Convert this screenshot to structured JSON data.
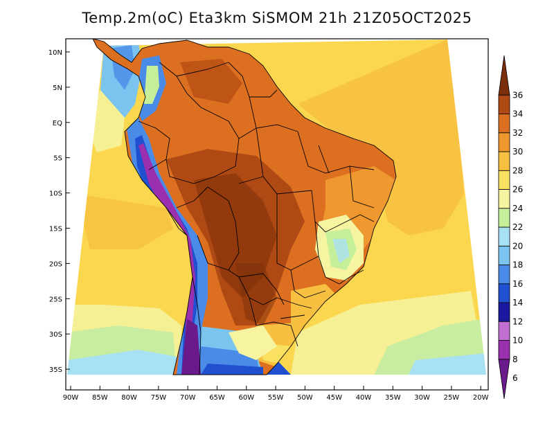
{
  "title": "Temp.2m(oC) Eta3km SiSMOM 21h 21Z05OCT2025",
  "lat_labels": [
    "10N",
    "5N",
    "EQ",
    "5S",
    "10S",
    "15S",
    "20S",
    "25S",
    "30S",
    "35S"
  ],
  "lon_labels": [
    "90W",
    "85W",
    "80W",
    "75W",
    "70W",
    "65W",
    "60W",
    "55W",
    "50W",
    "45W",
    "40W",
    "35W",
    "30W",
    "25W",
    "20W"
  ],
  "colorbar": {
    "labels": [
      "6",
      "8",
      "10",
      "12",
      "14",
      "16",
      "18",
      "20",
      "22",
      "24",
      "26",
      "28",
      "30",
      "32",
      "34",
      "36"
    ],
    "colors": [
      "#6a1a8a",
      "#9a30b0",
      "#c070d0",
      "#1a1aa0",
      "#2050d0",
      "#4a8be8",
      "#7cc4f0",
      "#a8e0f4",
      "#c6ef9a",
      "#f6f4a0",
      "#fae060",
      "#f7c040",
      "#ef9830",
      "#dc7020",
      "#b04a14",
      "#7a2e0a"
    ],
    "unit": "oC"
  },
  "palette": {
    "ocean_warm": "#fbd750",
    "ocean_mild": "#f6f095",
    "ocean_cool": "#c8eca0",
    "land_hot": "#b04a14"
  }
}
